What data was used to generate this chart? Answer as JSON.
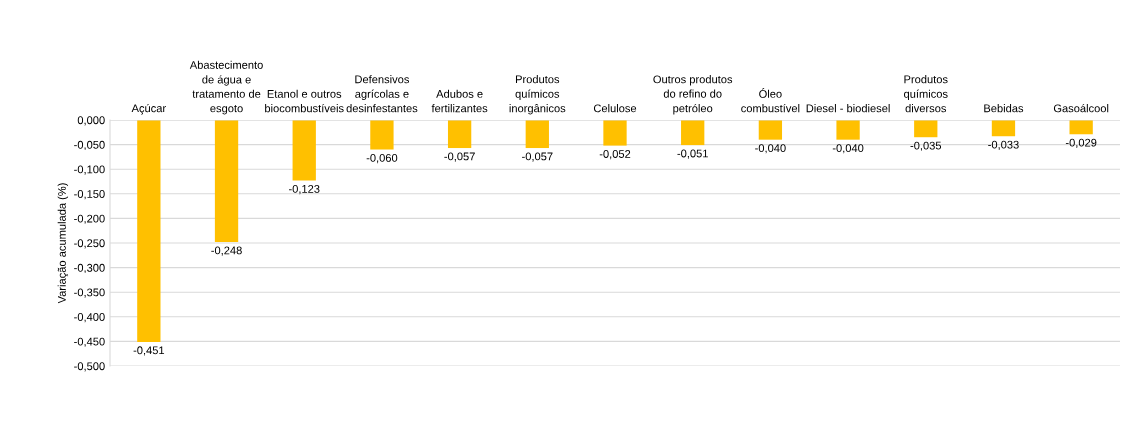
{
  "chart_data": {
    "type": "bar",
    "ylabel": "Variação acumulada (%)",
    "categories": [
      "Açúcar",
      "Abastecimento\nde água e\ntratamento de\nesgoto",
      "Etanol e outros\nbiocombustíveis",
      "Defensivos\nagrícolas e\ndesinfestantes",
      "Adubos e\nfertilizantes",
      "Produtos\nquímicos\ninorgânicos",
      "Celulose",
      "Outros produtos\ndo refino do\npetróleo",
      "Óleo\ncombustível",
      "Diesel - biodiesel",
      "Produtos\nquímicos\ndiversos",
      "Bebidas",
      "Gasoálcool"
    ],
    "values": [
      -0.451,
      -0.248,
      -0.123,
      -0.06,
      -0.057,
      -0.057,
      -0.052,
      -0.051,
      -0.04,
      -0.04,
      -0.035,
      -0.033,
      -0.029
    ],
    "value_labels": [
      "-0,451",
      "-0,248",
      "-0,123",
      "-0,060",
      "-0,057",
      "-0,057",
      "-0,052",
      "-0,051",
      "-0,040",
      "-0,040",
      "-0,035",
      "-0,033",
      "-0,029"
    ],
    "color": "#ffc000",
    "ylim": [
      -0.5,
      0
    ],
    "yticks": [
      {
        "value": 0,
        "label": "0,000"
      },
      {
        "value": -0.05,
        "label": "-0,050"
      },
      {
        "value": -0.1,
        "label": "-0,100"
      },
      {
        "value": -0.15,
        "label": "-0,150"
      },
      {
        "value": -0.2,
        "label": "-0,200"
      },
      {
        "value": -0.25,
        "label": "-0,250"
      },
      {
        "value": -0.3,
        "label": "-0,300"
      },
      {
        "value": -0.35,
        "label": "-0,350"
      },
      {
        "value": -0.4,
        "label": "-0,400"
      },
      {
        "value": -0.45,
        "label": "-0,450"
      },
      {
        "value": -0.5,
        "label": "-0,500"
      }
    ],
    "grid": "y",
    "legend": false
  }
}
